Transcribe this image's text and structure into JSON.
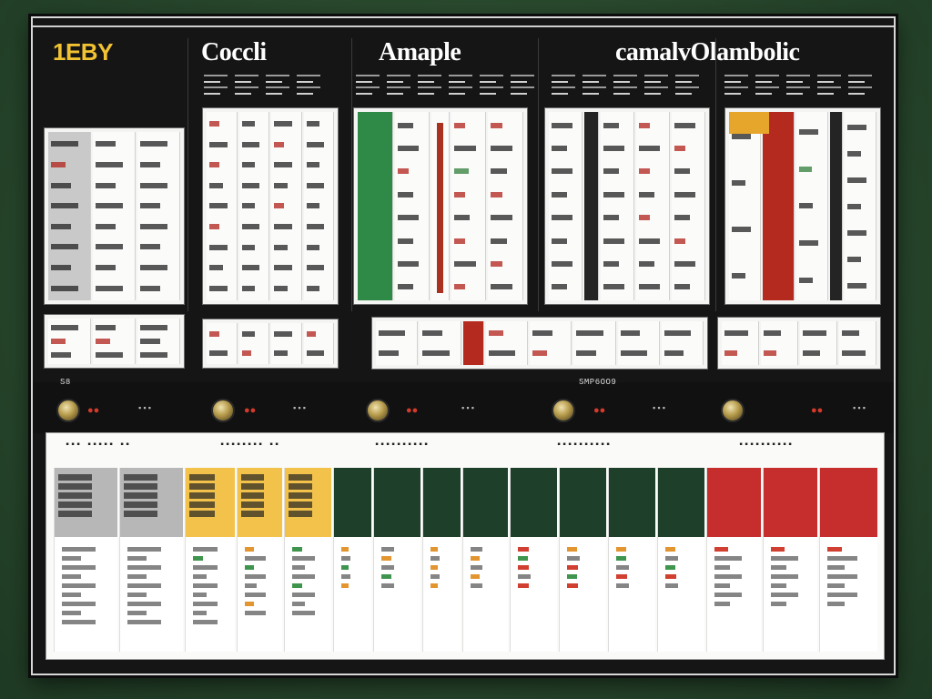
{
  "header": {
    "titles": [
      "1EBY",
      "Coccli",
      "Amaple",
      "camalvOlambolic"
    ]
  },
  "colors": {
    "brand": "#f1c232",
    "up": "#2f8a47",
    "down": "#b52a1f",
    "warning": "#e6a52b",
    "frame": "#151515"
  },
  "status": {
    "left_code": "S8",
    "mid_code": "SMP6OO9"
  }
}
